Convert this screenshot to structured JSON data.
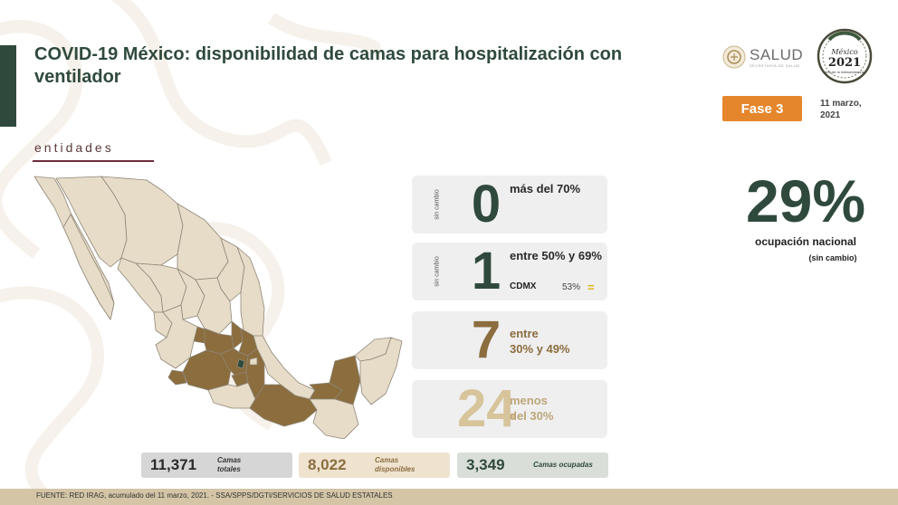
{
  "header": {
    "title": "COVID-19 México: disponibilidad de camas para hospitalización con ventilador",
    "logo_text": "SALUD",
    "logo_sub": "SECRETARÍA DE SALUD",
    "seal_line1": "México",
    "seal_line2": "2021",
    "seal_line3": "Año de la Independencia",
    "phase": "Fase 3",
    "date": "11 marzo,\n2021"
  },
  "section": {
    "label": "entidades"
  },
  "cards": [
    {
      "side": "sin cambio",
      "number": "0",
      "label": "más del 70%"
    },
    {
      "side": "sin cambio",
      "number": "1",
      "label": "entre 50% y 69%",
      "state": "CDMX",
      "state_pct": "53%",
      "state_trend": "="
    },
    {
      "side": "",
      "number": "7",
      "label": "entre\n30% y 49%"
    },
    {
      "side": "",
      "number": "24",
      "label": "menos\ndel 30%"
    }
  ],
  "national": {
    "value": "29%",
    "caption": "ocupación nacional",
    "note": "(sin cambio)"
  },
  "stats": [
    {
      "value": "11,371",
      "label": "Camas\ntotales"
    },
    {
      "value": "8,022",
      "label": "Camas\ndisponibles"
    },
    {
      "value": "3,349",
      "label": "Camas ocupadas"
    }
  ],
  "footer": {
    "text": "FUENTE: RED IRAG, acumulado del 11 marzo, 2021. -  SSA/SPPS/DGTI/SERVICIOS DE SALUD ESTATALES"
  },
  "colors": {
    "dark_green": "#2f4a3d",
    "brown": "#8b6d3e",
    "light_tan": "#d7c49b",
    "map_base": "#e6dcc8",
    "phase_orange": "#e5862c",
    "burgundy": "#6d2a3a"
  }
}
